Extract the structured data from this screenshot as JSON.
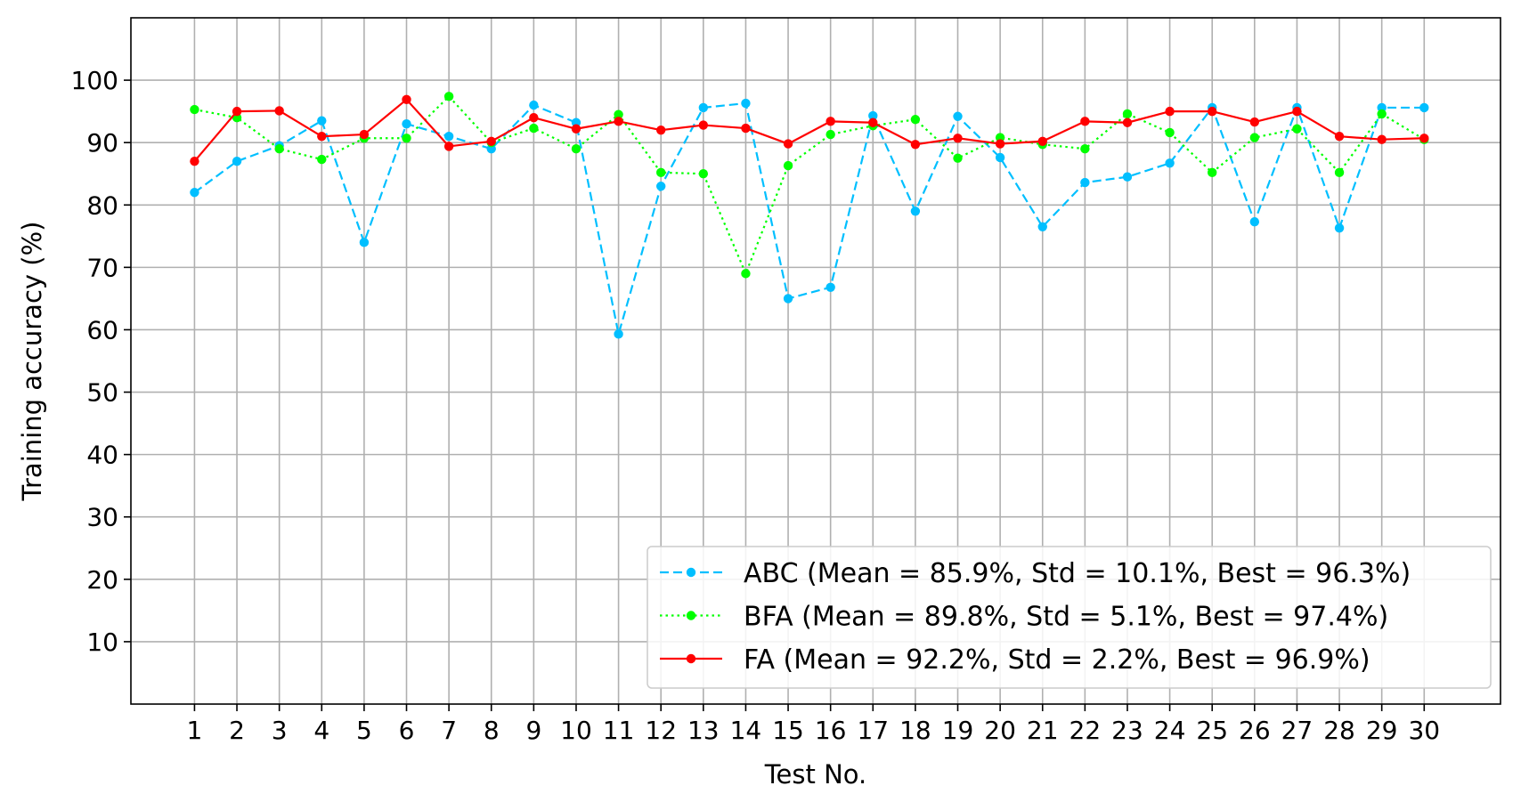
{
  "chart_data": {
    "type": "line",
    "title": "",
    "xlabel": "Test No.",
    "ylabel": "Training accuracy (%)",
    "x": [
      1,
      2,
      3,
      4,
      5,
      6,
      7,
      8,
      9,
      10,
      11,
      12,
      13,
      14,
      15,
      16,
      17,
      18,
      19,
      20,
      21,
      22,
      23,
      24,
      25,
      26,
      27,
      28,
      29,
      30
    ],
    "xlim": [
      -0.5,
      31.8
    ],
    "ylim": [
      0,
      110
    ],
    "yticks": [
      10,
      20,
      30,
      40,
      50,
      60,
      70,
      80,
      90,
      100
    ],
    "grid": true,
    "legend_position": "lower-right",
    "series": [
      {
        "name": "ABC (Mean = 85.9%, Std = 10.1%, Best = 96.3%)",
        "color": "#00bfff",
        "line_style": "dashed",
        "marker": "dot",
        "values": [
          82,
          87,
          89.5,
          93.5,
          74,
          93,
          91,
          89,
          96,
          93.2,
          59.3,
          83,
          95.6,
          96.3,
          65,
          66.8,
          94.3,
          79,
          94.2,
          87.6,
          76.5,
          83.6,
          84.5,
          86.7,
          95.6,
          77.3,
          95.6,
          76.3,
          95.6,
          95.6
        ]
      },
      {
        "name": "BFA (Mean = 89.8%, Std = 5.1%, Best = 97.4%)",
        "color": "#00ff00",
        "line_style": "dotted",
        "marker": "dot",
        "values": [
          95.3,
          94,
          89,
          87.3,
          90.7,
          90.7,
          97.4,
          90,
          92.3,
          89,
          94.5,
          85.2,
          85,
          69,
          86.3,
          91.3,
          92.7,
          93.7,
          87.5,
          90.8,
          89.7,
          89,
          94.6,
          91.6,
          85.2,
          90.8,
          92.2,
          85.2,
          94.6,
          90.5
        ]
      },
      {
        "name": "FA (Mean = 92.2%, Std = 2.2%, Best = 96.9%)",
        "color": "#ff0000",
        "line_style": "solid",
        "marker": "dot",
        "values": [
          87,
          95,
          95.1,
          91,
          91.3,
          96.9,
          89.4,
          90.2,
          94,
          92.2,
          93.4,
          92,
          92.8,
          92.3,
          89.8,
          93.4,
          93.2,
          89.7,
          90.7,
          89.8,
          90.2,
          93.4,
          93.2,
          95,
          95,
          93.3,
          95,
          91,
          90.5,
          90.7
        ]
      }
    ]
  }
}
